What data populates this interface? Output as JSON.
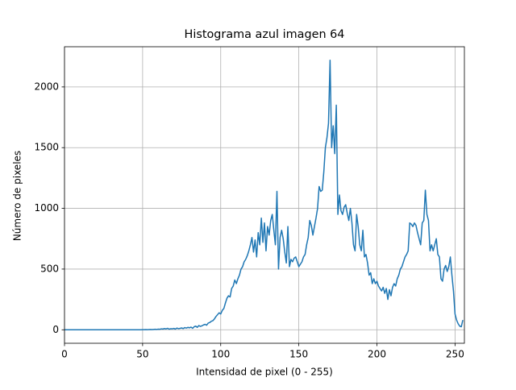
{
  "chart_data": {
    "type": "line",
    "title": "Histograma azul imagen 64",
    "x_label": "Intensidad de pixel (0 - 255)",
    "y_label": "Número de pixeles",
    "color": "#1f77b4",
    "grid": true,
    "xlim": [
      0,
      256
    ],
    "ylim": [
      -111,
      2331
    ],
    "xticks": [
      0,
      50,
      100,
      150,
      200,
      250
    ],
    "yticks": [
      0,
      500,
      1000,
      1500,
      2000
    ],
    "x": [
      0,
      1,
      2,
      3,
      4,
      5,
      6,
      7,
      8,
      9,
      10,
      11,
      12,
      13,
      14,
      15,
      16,
      17,
      18,
      19,
      20,
      21,
      22,
      23,
      24,
      25,
      26,
      27,
      28,
      29,
      30,
      31,
      32,
      33,
      34,
      35,
      36,
      37,
      38,
      39,
      40,
      41,
      42,
      43,
      44,
      45,
      46,
      47,
      48,
      49,
      50,
      51,
      52,
      53,
      54,
      55,
      56,
      57,
      58,
      59,
      60,
      61,
      62,
      63,
      64,
      65,
      66,
      67,
      68,
      69,
      70,
      71,
      72,
      73,
      74,
      75,
      76,
      77,
      78,
      79,
      80,
      81,
      82,
      83,
      84,
      85,
      86,
      87,
      88,
      89,
      90,
      91,
      92,
      93,
      94,
      95,
      96,
      97,
      98,
      99,
      100,
      101,
      102,
      103,
      104,
      105,
      106,
      107,
      108,
      109,
      110,
      111,
      112,
      113,
      114,
      115,
      116,
      117,
      118,
      119,
      120,
      121,
      122,
      123,
      124,
      125,
      126,
      127,
      128,
      129,
      130,
      131,
      132,
      133,
      134,
      135,
      136,
      137,
      138,
      139,
      140,
      141,
      142,
      143,
      144,
      145,
      146,
      147,
      148,
      149,
      150,
      151,
      152,
      153,
      154,
      155,
      156,
      157,
      158,
      159,
      160,
      161,
      162,
      163,
      164,
      165,
      166,
      167,
      168,
      169,
      170,
      171,
      172,
      173,
      174,
      175,
      176,
      177,
      178,
      179,
      180,
      181,
      182,
      183,
      184,
      185,
      186,
      187,
      188,
      189,
      190,
      191,
      192,
      193,
      194,
      195,
      196,
      197,
      198,
      199,
      200,
      201,
      202,
      203,
      204,
      205,
      206,
      207,
      208,
      209,
      210,
      211,
      212,
      213,
      214,
      215,
      216,
      217,
      218,
      219,
      220,
      221,
      222,
      223,
      224,
      225,
      226,
      227,
      228,
      229,
      230,
      231,
      232,
      233,
      234,
      235,
      236,
      237,
      238,
      239,
      240,
      241,
      242,
      243,
      244,
      245,
      246,
      247,
      248,
      249,
      250,
      251,
      252,
      253,
      254,
      255
    ],
    "values": [
      0,
      0,
      0,
      0,
      0,
      0,
      0,
      0,
      0,
      0,
      0,
      0,
      0,
      0,
      0,
      0,
      0,
      0,
      0,
      0,
      0,
      0,
      0,
      0,
      0,
      0,
      0,
      0,
      0,
      0,
      0,
      0,
      0,
      0,
      0,
      0,
      0,
      0,
      0,
      0,
      0,
      0,
      0,
      0,
      0,
      0,
      0,
      0,
      0,
      0,
      1,
      1,
      2,
      1,
      2,
      3,
      2,
      3,
      4,
      3,
      5,
      4,
      8,
      6,
      10,
      7,
      12,
      5,
      9,
      8,
      11,
      6,
      14,
      9,
      12,
      15,
      10,
      18,
      14,
      20,
      16,
      22,
      12,
      25,
      30,
      20,
      35,
      28,
      33,
      40,
      45,
      38,
      55,
      60,
      70,
      75,
      90,
      110,
      125,
      140,
      130,
      160,
      175,
      220,
      260,
      280,
      270,
      340,
      360,
      410,
      380,
      420,
      450,
      500,
      520,
      560,
      580,
      610,
      650,
      700,
      760,
      640,
      740,
      600,
      800,
      700,
      920,
      720,
      880,
      650,
      850,
      780,
      900,
      950,
      820,
      700,
      1140,
      500,
      760,
      820,
      750,
      640,
      550,
      850,
      520,
      580,
      560,
      590,
      600,
      560,
      520,
      540,
      560,
      600,
      620,
      700,
      760,
      900,
      860,
      780,
      850,
      920,
      1000,
      1180,
      1140,
      1150,
      1300,
      1500,
      1580,
      1700,
      2220,
      1500,
      1680,
      1450,
      1850,
      950,
      1110,
      980,
      950,
      1010,
      1030,
      960,
      900,
      1000,
      880,
      700,
      650,
      950,
      850,
      700,
      650,
      820,
      600,
      620,
      550,
      450,
      470,
      380,
      420,
      380,
      400,
      360,
      340,
      320,
      350,
      300,
      340,
      250,
      330,
      280,
      350,
      380,
      360,
      420,
      450,
      500,
      520,
      560,
      600,
      620,
      650,
      880,
      870,
      850,
      880,
      860,
      800,
      750,
      700,
      880,
      900,
      1150,
      950,
      900,
      650,
      700,
      650,
      700,
      750,
      620,
      600,
      420,
      400,
      500,
      530,
      480,
      520,
      600,
      450,
      320,
      130,
      80,
      50,
      30,
      25,
      80
    ]
  }
}
